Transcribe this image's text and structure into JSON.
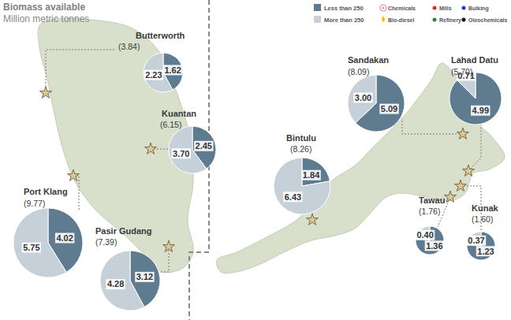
{
  "title": "Biomass available",
  "subtitle": "Million metric tonnes",
  "legend": [
    {
      "name": "Less than 250",
      "color": "#5f7b90"
    },
    {
      "name": "More than 250",
      "color": "#c6d0d9"
    }
  ],
  "facilities": [
    {
      "name": "Chemicals",
      "color": "#e58aa3",
      "marker": "icon"
    },
    {
      "name": "Mills",
      "color": "#e8262a",
      "marker": "dot"
    },
    {
      "name": "Bulking",
      "color": "#1a3fd0",
      "marker": "dot"
    },
    {
      "name": "Bio-diesel",
      "color": "#f2c500",
      "marker": "drop"
    },
    {
      "name": "Refinery",
      "color": "#1e8a3c",
      "marker": "dot"
    },
    {
      "name": "Oleochemicals",
      "color": "#111111",
      "marker": "dot"
    }
  ],
  "chart_data": [
    {
      "type": "pie",
      "title": "Butterworth",
      "subtitle": "(3.84)",
      "values": [
        1.62,
        2.23
      ],
      "data_labels": true
    },
    {
      "type": "pie",
      "title": "Kuantan",
      "subtitle": "(6.15)",
      "values": [
        2.45,
        3.7
      ],
      "value_labels": [
        "2.45",
        "3.70"
      ],
      "data_labels": true
    },
    {
      "type": "pie",
      "title": "Port Klang",
      "subtitle": "(9.77)",
      "values": [
        4.02,
        5.75
      ],
      "data_labels": true
    },
    {
      "type": "pie",
      "title": "Pasir Gudang",
      "subtitle": "(7.39)",
      "values": [
        3.12,
        4.28
      ],
      "data_labels": true
    },
    {
      "type": "pie",
      "title": "Bintulu",
      "subtitle": "(8.26)",
      "values": [
        1.84,
        6.43
      ],
      "data_labels": true
    },
    {
      "type": "pie",
      "title": "Sandakan",
      "subtitle": "(8.09)",
      "values": [
        5.09,
        3.0
      ],
      "value_labels": [
        "5.09",
        "3.00"
      ],
      "data_labels": true
    },
    {
      "type": "pie",
      "title": "Lahad Datu",
      "subtitle": "(5.70)",
      "values": [
        4.99,
        0.71
      ],
      "data_labels": true
    },
    {
      "type": "pie",
      "title": "Tawau",
      "subtitle": "(1.76)",
      "values": [
        1.36,
        0.4
      ],
      "value_labels": [
        "1.36",
        "0.40"
      ],
      "data_labels": true
    },
    {
      "type": "pie",
      "title": "Kunak",
      "subtitle": "(1.60)",
      "values": [
        1.23,
        0.37
      ],
      "data_labels": true
    }
  ]
}
